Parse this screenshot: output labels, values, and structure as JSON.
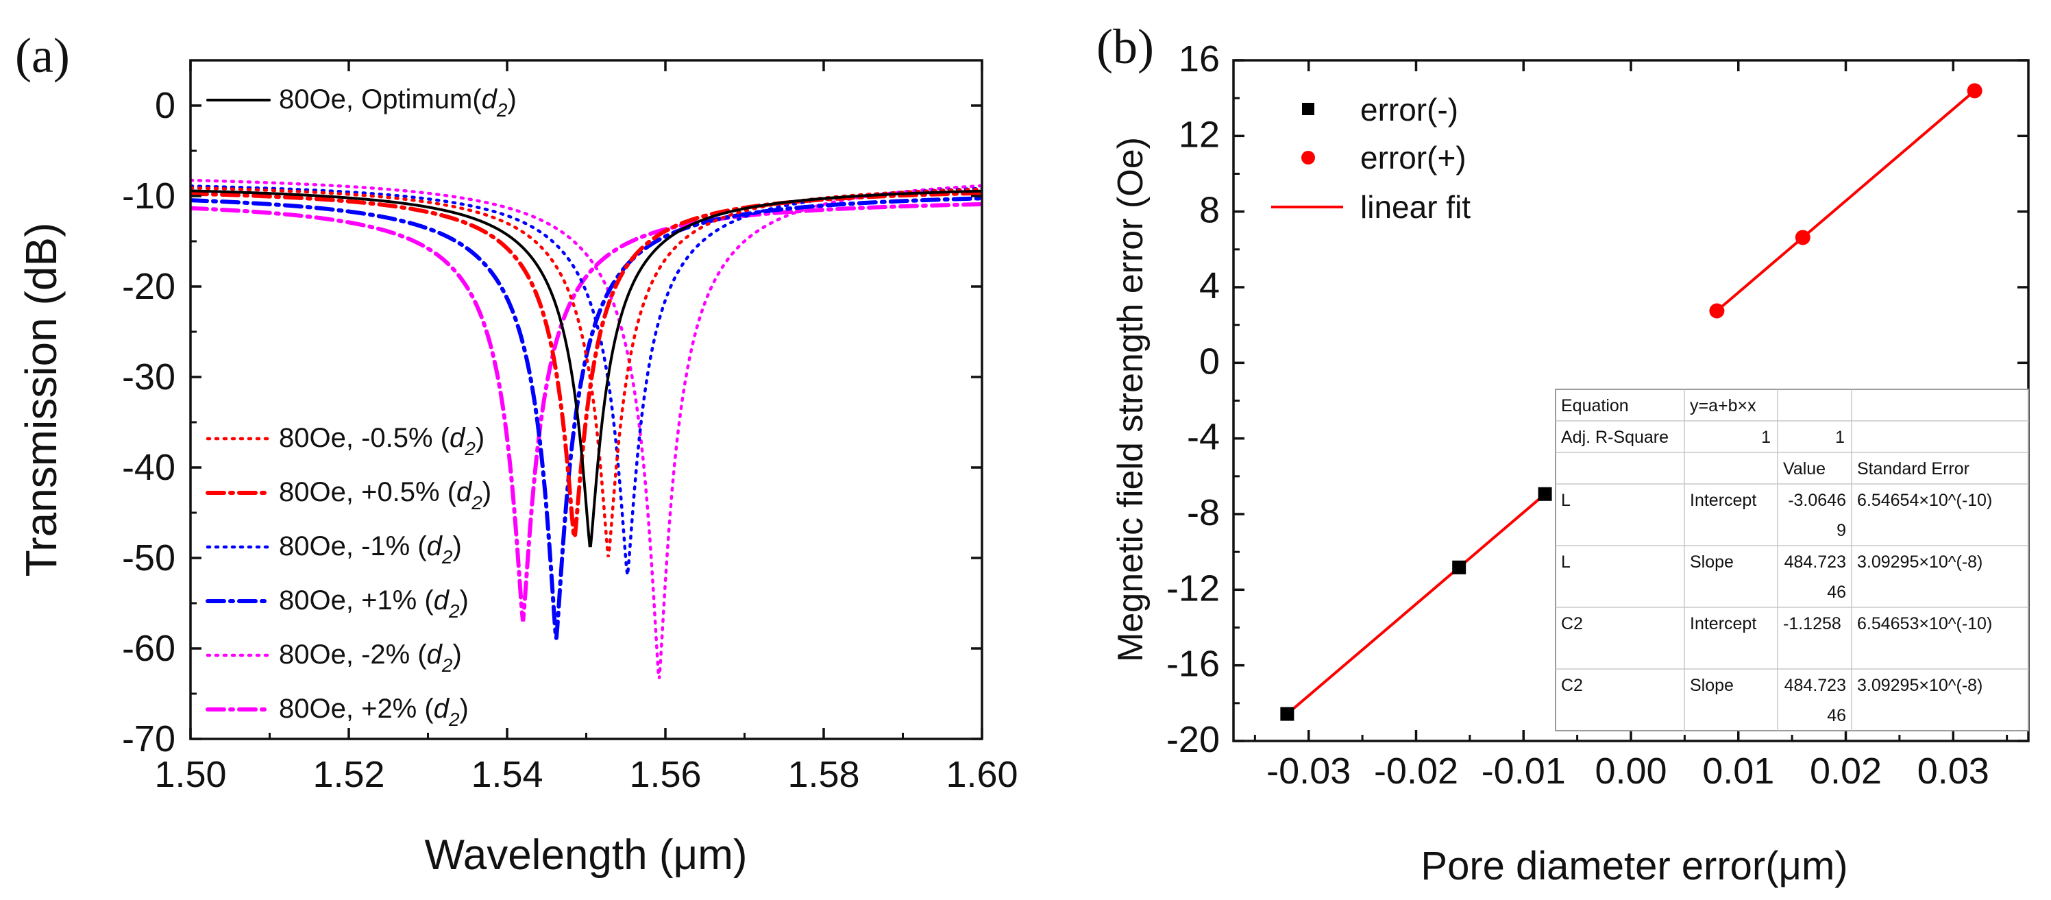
{
  "chart_data": [
    {
      "panel": "(a)",
      "type": "line",
      "xlabel": "Wavelength (μm)",
      "ylabel": "Transmission (dB)",
      "xlim": [
        1.5,
        1.6
      ],
      "ylim": [
        -70,
        5
      ],
      "xticks": [
        1.5,
        1.52,
        1.54,
        1.56,
        1.58,
        1.6
      ],
      "xtick_labels": [
        "1.50",
        "1.52",
        "1.54",
        "1.56",
        "1.58",
        "1.60"
      ],
      "yticks": [
        0,
        -10,
        -20,
        -30,
        -40,
        -50,
        -60,
        -70
      ],
      "ytick_labels": [
        "0",
        "-10",
        "-20",
        "-30",
        "-40",
        "-50",
        "-60",
        "-70"
      ],
      "series": [
        {
          "name": "80Oe, Optimum",
          "subscript_name": "d2",
          "color": "#000000",
          "style": "solid",
          "center": 1.5505,
          "min": -49,
          "width": 0.0105,
          "edge": 8.5,
          "legend_group": "top"
        },
        {
          "name": "80Oe, -0.5%",
          "subscript_name": "d2",
          "color": "#ff0000",
          "style": "dot",
          "center": 1.5528,
          "min": -50,
          "width": 0.0105,
          "edge": 8.2,
          "legend_group": "bottom"
        },
        {
          "name": "80Oe, +0.5%",
          "subscript_name": "d2",
          "color": "#ff0000",
          "style": "dashdot",
          "center": 1.5485,
          "min": -48,
          "width": 0.0105,
          "edge": 8.8,
          "legend_group": "bottom"
        },
        {
          "name": "80Oe, -1%",
          "subscript_name": "d2",
          "color": "#0000ff",
          "style": "dot",
          "center": 1.5552,
          "min": -52,
          "width": 0.0105,
          "edge": 8.0,
          "legend_group": "bottom"
        },
        {
          "name": "80Oe, +1%",
          "subscript_name": "d2",
          "color": "#0000ff",
          "style": "dashdot",
          "center": 1.5462,
          "min": -59,
          "width": 0.0105,
          "edge": 9.2,
          "legend_group": "bottom"
        },
        {
          "name": "80Oe, -2%",
          "subscript_name": "d2",
          "color": "#ff00ff",
          "style": "dot",
          "center": 1.5592,
          "min": -63.5,
          "width": 0.0105,
          "edge": 7.2,
          "legend_group": "bottom"
        },
        {
          "name": "80Oe, +2%",
          "subscript_name": "d2",
          "color": "#ff00ff",
          "style": "dashdot",
          "center": 1.542,
          "min": -57,
          "width": 0.0105,
          "edge": 10.0,
          "legend_group": "bottom"
        }
      ]
    },
    {
      "panel": "(b)",
      "type": "scatter",
      "xlabel": "Pore diameter error(μm)",
      "ylabel": "Megnetic field strength error  (Oe)",
      "xlim": [
        -0.037,
        0.037
      ],
      "ylim": [
        -20,
        16
      ],
      "xticks": [
        -0.03,
        -0.02,
        -0.01,
        0.0,
        0.01,
        0.02,
        0.03
      ],
      "xtick_labels": [
        "-0.03",
        "-0.02",
        "-0.01",
        "0.00",
        "0.01",
        "0.02",
        "0.03"
      ],
      "yticks": [
        -20,
        -16,
        -12,
        -8,
        -4,
        0,
        4,
        8,
        12,
        16
      ],
      "ytick_labels": [
        "-20",
        "-16",
        "-12",
        "-8",
        "-4",
        "0",
        "4",
        "8",
        "12",
        "16"
      ],
      "series": [
        {
          "name": "error(-)",
          "marker": "square",
          "color": "#000000",
          "x": [
            -0.032,
            -0.016,
            -0.008
          ],
          "y": [
            -18.57,
            -10.82,
            -6.94
          ]
        },
        {
          "name": "error(+)",
          "marker": "circle",
          "color": "#ff0000",
          "x": [
            0.008,
            0.016,
            0.032
          ],
          "y": [
            2.75,
            6.63,
            14.39
          ]
        },
        {
          "name": "linear fit",
          "marker": "line",
          "color": "#ff0000"
        }
      ],
      "fit_table": {
        "headers": [
          "Equation",
          "y=a+b×x",
          "",
          ""
        ],
        "rows": [
          [
            "Adj. R-Square",
            "1",
            "1",
            ""
          ],
          [
            "",
            "",
            "Value",
            "Standard Error"
          ],
          [
            "L",
            "Intercept",
            "-3.0646\n9",
            "6.54654×10^(-10)"
          ],
          [
            "L",
            "Slope",
            "484.723\n46",
            "3.09295×10^(-8)"
          ],
          [
            "C2",
            "Intercept",
            "-1.1258",
            "6.54653×10^(-10)"
          ],
          [
            "C2",
            "Slope",
            "484.723\n46",
            "3.09295×10^(-8)"
          ]
        ]
      }
    }
  ]
}
